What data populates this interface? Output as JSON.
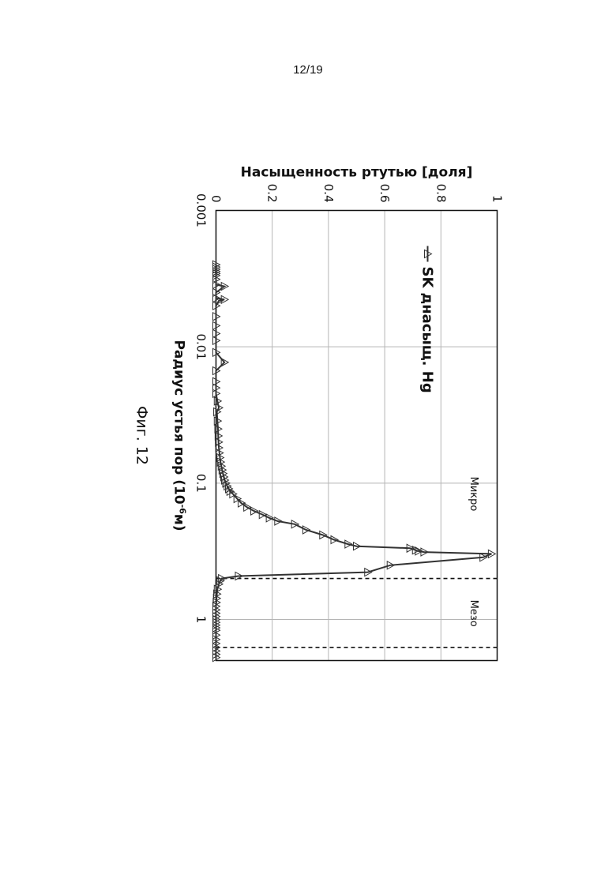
{
  "page_number": "12/19",
  "figure_caption": "Фиг. 12",
  "chart_data": {
    "type": "line",
    "xlabel": "Радиус устья пор (10⁻⁶м)",
    "xlabel_parts": {
      "base": "Радиус устья пор (10",
      "exp": "-6",
      "unit": "м)"
    },
    "ylabel": "Насыщенность ртутью [доля]",
    "x_scale": "log",
    "xlim": [
      0.001,
      2
    ],
    "ylim": [
      0,
      1
    ],
    "x_ticks": [
      {
        "value": 0.001,
        "label": "0.001"
      },
      {
        "value": 0.01,
        "label": "0.01"
      },
      {
        "value": 0.1,
        "label": "0.1"
      },
      {
        "value": 1,
        "label": "1"
      }
    ],
    "y_ticks": [
      {
        "value": 0,
        "label": "0"
      },
      {
        "value": 0.2,
        "label": "0.2"
      },
      {
        "value": 0.4,
        "label": "0.4"
      },
      {
        "value": 0.6,
        "label": "0.6"
      },
      {
        "value": 0.8,
        "label": "0.8"
      },
      {
        "value": 1,
        "label": "1"
      }
    ],
    "grid": true,
    "legend_position": "top-left",
    "orientation": "rotated 90° clockwise on page",
    "series": [
      {
        "name": "SK днасыщ. Hg",
        "marker": "triangle",
        "color": "#333333",
        "x": [
          0.0025,
          0.0026,
          0.0027,
          0.0028,
          0.0029,
          0.003,
          0.0032,
          0.0035,
          0.0036,
          0.004,
          0.0044,
          0.0045,
          0.0046,
          0.005,
          0.006,
          0.007,
          0.008,
          0.009,
          0.011,
          0.013,
          0.015,
          0.018,
          0.02,
          0.022,
          0.025,
          0.028,
          0.03,
          0.035,
          0.04,
          0.045,
          0.05,
          0.055,
          0.06,
          0.065,
          0.07,
          0.075,
          0.08,
          0.085,
          0.09,
          0.095,
          0.1,
          0.105,
          0.11,
          0.115,
          0.12,
          0.13,
          0.14,
          0.15,
          0.16,
          0.17,
          0.18,
          0.19,
          0.2,
          0.22,
          0.24,
          0.26,
          0.28,
          0.29,
          0.3,
          0.31,
          0.315,
          0.32,
          0.33,
          0.35,
          0.4,
          0.45,
          0.48,
          0.5,
          0.52,
          0.55,
          0.6,
          0.65,
          0.7,
          0.75,
          0.8,
          0.85,
          0.9,
          0.95,
          1.0,
          1.05,
          1.1,
          1.15,
          1.2,
          1.3,
          1.4,
          1.5,
          1.6,
          1.7,
          1.8,
          1.9
        ],
        "y": [
          0.0,
          0.0,
          0.0,
          0.0,
          0.0,
          0.0,
          0.0,
          0.0,
          0.03,
          0.0,
          0.0,
          0.03,
          0.01,
          0.0,
          0.0,
          0.0,
          0.0,
          0.0,
          0.0,
          0.03,
          0.0,
          0.0,
          0.0,
          0.0,
          0.005,
          0.01,
          0.003,
          0.005,
          0.007,
          0.008,
          0.009,
          0.01,
          0.012,
          0.014,
          0.016,
          0.019,
          0.022,
          0.025,
          0.028,
          0.031,
          0.035,
          0.04,
          0.045,
          0.05,
          0.06,
          0.075,
          0.09,
          0.11,
          0.135,
          0.165,
          0.19,
          0.22,
          0.28,
          0.32,
          0.38,
          0.42,
          0.47,
          0.5,
          0.69,
          0.71,
          0.72,
          0.74,
          0.98,
          0.95,
          0.62,
          0.54,
          0.08,
          0.02,
          0.015,
          0.01,
          0.005,
          0.003,
          0.002,
          0.001,
          0.0,
          0.0,
          0.0,
          0.0,
          0.0,
          0.0,
          0.0,
          0.0,
          0.0,
          0.0,
          0.0,
          0.0,
          0.0,
          0.0,
          0.0,
          0.0
        ]
      }
    ],
    "annotations": [
      {
        "text": "Микро",
        "x": 0.12,
        "y": 0.92
      },
      {
        "text": "Мезо",
        "x": 0.9,
        "y": 0.92
      }
    ],
    "vlines": [
      0.5,
      1.6
    ]
  }
}
